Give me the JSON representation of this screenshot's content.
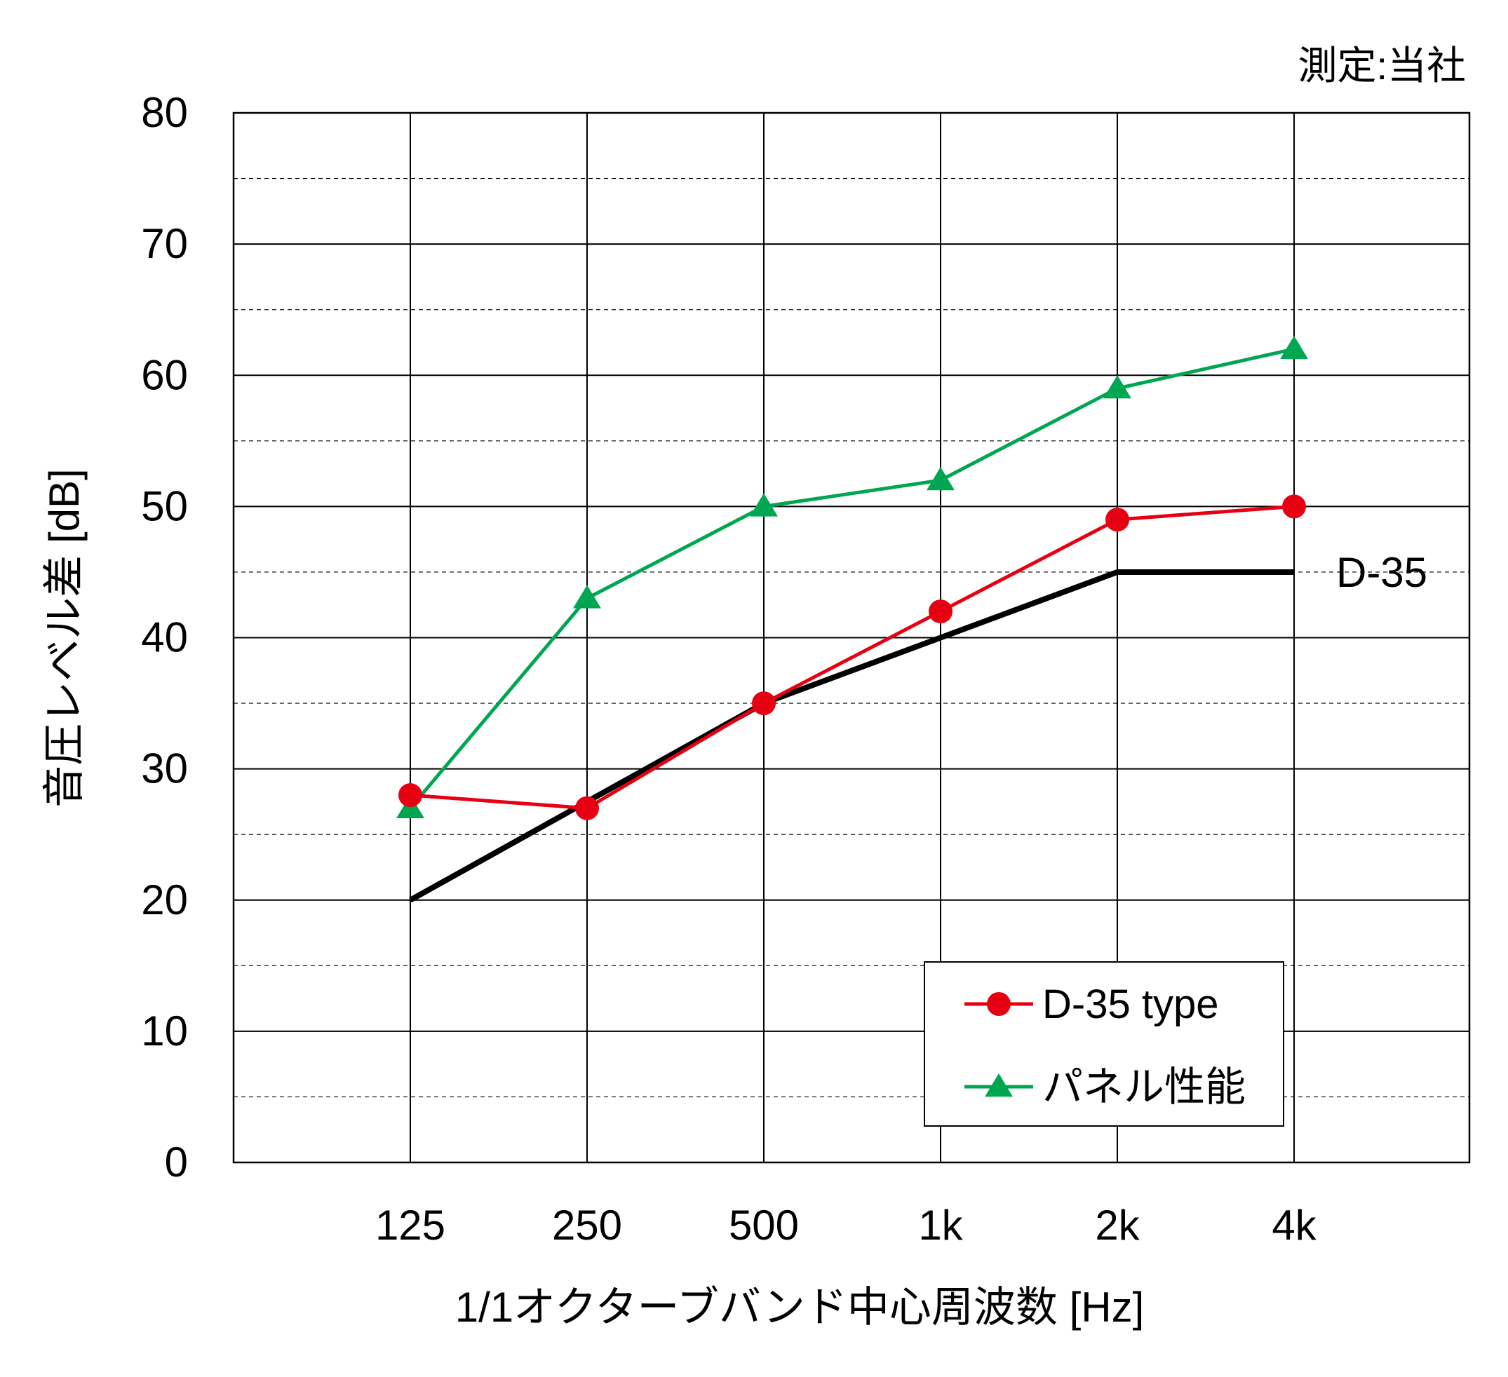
{
  "note": "測定:当社",
  "chart_data": {
    "type": "line",
    "categories": [
      "125",
      "250",
      "500",
      "1k",
      "2k",
      "4k"
    ],
    "xlabel": "1/1オクターブバンド中心周波数 [Hz]",
    "ylabel": "音圧レベル差 [dB]",
    "ylim": [
      0,
      80
    ],
    "yticks": [
      "0",
      "10",
      "20",
      "30",
      "40",
      "50",
      "60",
      "70",
      "80"
    ],
    "grid": {
      "major": true,
      "minor_dashed": true
    },
    "legend_position": "bottom-right",
    "series": [
      {
        "name": "D-35 type",
        "values": [
          28,
          27,
          35,
          42,
          49,
          50
        ],
        "color": "#e60012",
        "marker": "circle"
      },
      {
        "name": "パネル性能",
        "values": [
          27,
          43,
          50,
          52,
          59,
          62
        ],
        "color": "#00a650",
        "marker": "triangle"
      }
    ],
    "reference_line": {
      "label": "D-35",
      "values": [
        20,
        27.5,
        35,
        40,
        45,
        45
      ],
      "color": "#000000"
    }
  }
}
